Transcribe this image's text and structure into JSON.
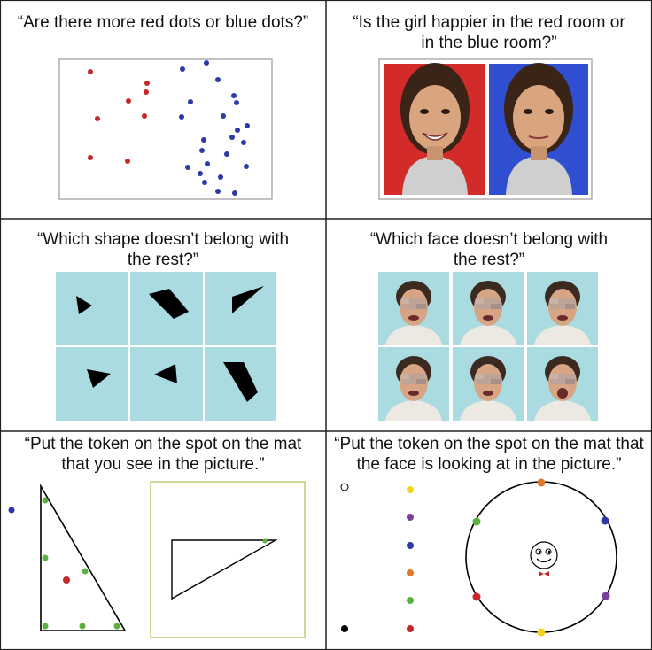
{
  "panels": [
    {
      "prompt": "“Are there more red dots or blue dots?”"
    },
    {
      "prompt": "“Is the girl happier in the red room or in the blue room?”"
    },
    {
      "prompt": "“Which shape doesn’t belong with the rest?”"
    },
    {
      "prompt": "“Which face doesn’t belong with the rest?”"
    },
    {
      "prompt": "“Put the token on the spot on the mat that you see in the picture.”"
    },
    {
      "prompt": "“Put the token on the spot on the mat that the face is looking at in the picture.”"
    }
  ],
  "colors": {
    "red": "#c62828",
    "blue": "#2b3aa8",
    "green": "#5cb040",
    "yellow": "#f5d31a",
    "purple": "#7b3fa0",
    "orange": "#e0782a",
    "tile": "#a9dbe0",
    "room_red": "#d32a2a",
    "room_blue": "#2f4fd0",
    "mat_border": "#c8cc7a"
  }
}
